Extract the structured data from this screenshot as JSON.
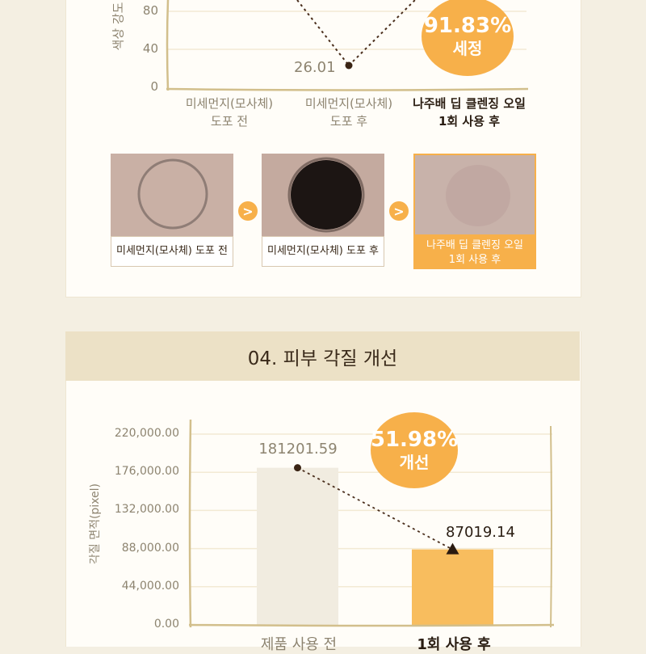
{
  "colors": {
    "accent": "#f7b04a",
    "bar_before": "#f1ece0",
    "bar_after": "#f8bd5e",
    "frame": "#d2bf8c"
  },
  "chart1": {
    "ylabel": "색상 강도",
    "ticks": [
      "80",
      "40",
      "0"
    ],
    "point_label": "26.01",
    "bubble_pct": "91.83%",
    "bubble_label": "세정",
    "categories": [
      {
        "line1": "미세먼지(모사체)",
        "line2": "도포 전"
      },
      {
        "line1": "미세먼지(모사체)",
        "line2": "도포 후"
      },
      {
        "line1": "나주배 딥 클렌징 오일",
        "line2": "1회 사용 후"
      }
    ]
  },
  "photos": {
    "captions": [
      {
        "line1": "미세먼지(모사체) 도포 전",
        "line2": ""
      },
      {
        "line1": "미세먼지(모사체) 도포 후",
        "line2": ""
      },
      {
        "line1": "나주배 딥 클렌징 오일",
        "line2": "1회 사용 후"
      }
    ],
    "arrow_glyph": ">"
  },
  "section4": {
    "title": "04. 피부 각질 개선"
  },
  "chart_data": [
    {
      "type": "line",
      "ylabel": "색상 강도",
      "categories": [
        "미세먼지(모사체) 도포 전",
        "미세먼지(모사체) 도포 후",
        "나주배 딥 클렌징 오일 1회 사용 후"
      ],
      "values": [
        null,
        26.01,
        null
      ],
      "data_labels": [
        "",
        "26.01",
        ""
      ],
      "annotation": "91.83% 세정",
      "ylim": [
        0,
        100
      ],
      "yticks": [
        0,
        40,
        80
      ],
      "grid": true
    },
    {
      "type": "bar",
      "ylabel": "각질 면적(pixel)",
      "categories": [
        "제품 사용 전",
        "1회 사용 후"
      ],
      "values": [
        181201.59,
        87019.14
      ],
      "data_labels": [
        "181201.59",
        "87019.14"
      ],
      "yticks": [
        "0.00",
        "44,000.00",
        "88,000.00",
        "132,000.00",
        "176,000.00",
        "220,000.00"
      ],
      "ylim": [
        0,
        220000
      ],
      "annotation": "51.98% 개선",
      "grid": true
    }
  ],
  "chart2_bubble": {
    "pct": "51.98%",
    "label": "개선"
  }
}
